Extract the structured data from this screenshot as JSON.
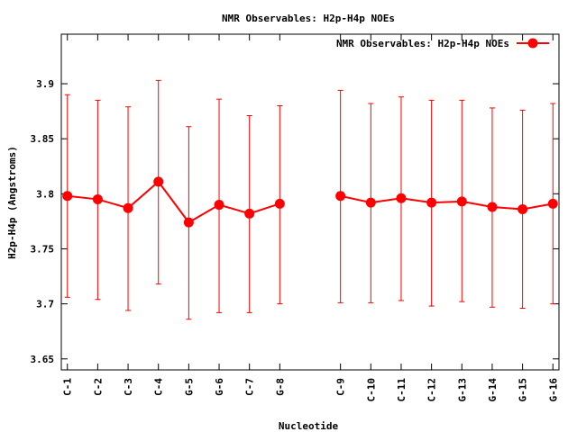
{
  "chart_data": {
    "type": "line",
    "title": "NMR Observables: H2p-H4p NOEs",
    "xlabel": "Nucleotide",
    "ylabel": "H2p-H4p (Angstroms)",
    "ylim": [
      3.64,
      3.945
    ],
    "yticks": [
      3.65,
      3.7,
      3.75,
      3.8,
      3.85,
      3.9
    ],
    "ytick_labels": [
      "3.65",
      "3.7",
      "3.75",
      "3.8",
      "3.85",
      "3.9"
    ],
    "grid": false,
    "legend_position": "top-right",
    "series": [
      {
        "name": "NMR Observables: H2p-H4p NOEs",
        "color": "#ff0000",
        "segments": [
          {
            "x": [
              1,
              2,
              3,
              4,
              5,
              6,
              7,
              8
            ],
            "categories": [
              "C-1",
              "C-2",
              "C-3",
              "C-4",
              "G-5",
              "G-6",
              "C-7",
              "G-8"
            ],
            "values": [
              3.798,
              3.795,
              3.787,
              3.811,
              3.774,
              3.79,
              3.782,
              3.791
            ],
            "err_low": [
              3.706,
              3.704,
              3.694,
              3.718,
              3.686,
              3.692,
              3.692,
              3.7
            ],
            "err_high": [
              3.89,
              3.885,
              3.879,
              3.903,
              3.861,
              3.886,
              3.871,
              3.88
            ]
          },
          {
            "x": [
              10,
              11,
              12,
              13,
              14,
              15,
              16,
              17
            ],
            "categories": [
              "C-9",
              "C-10",
              "C-11",
              "C-12",
              "G-13",
              "G-14",
              "G-15",
              "G-16"
            ],
            "values": [
              3.798,
              3.792,
              3.796,
              3.792,
              3.793,
              3.788,
              3.786,
              3.791
            ],
            "err_low": [
              3.701,
              3.701,
              3.703,
              3.698,
              3.702,
              3.697,
              3.696,
              3.7
            ],
            "err_high": [
              3.894,
              3.882,
              3.888,
              3.885,
              3.885,
              3.878,
              3.876,
              3.882
            ]
          }
        ]
      }
    ]
  }
}
